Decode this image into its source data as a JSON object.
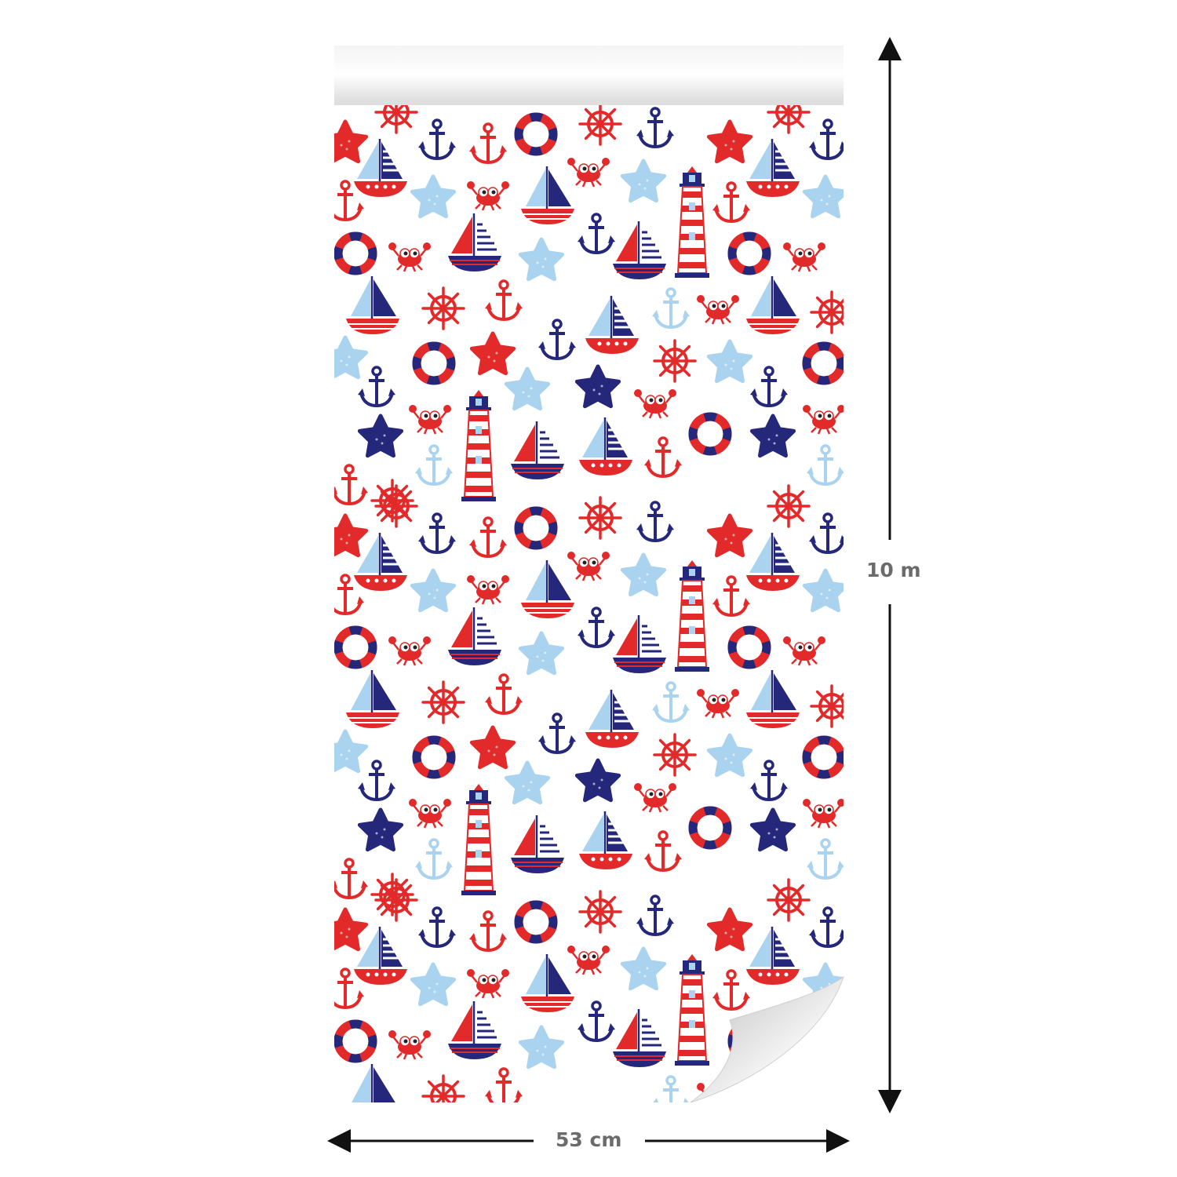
{
  "product": {
    "dimensions": {
      "height_label": "10 m",
      "width_label": "53 cm"
    }
  },
  "colors": {
    "red": "#e32a2a",
    "navy": "#25277a",
    "light_blue": "#a9d3ee",
    "background": "#ffffff",
    "dimension_text": "#6b6b6b"
  },
  "pattern": {
    "motifs": [
      "anchor",
      "ship-wheel",
      "life-ring",
      "starfish",
      "crab",
      "sailboat",
      "lighthouse"
    ]
  }
}
